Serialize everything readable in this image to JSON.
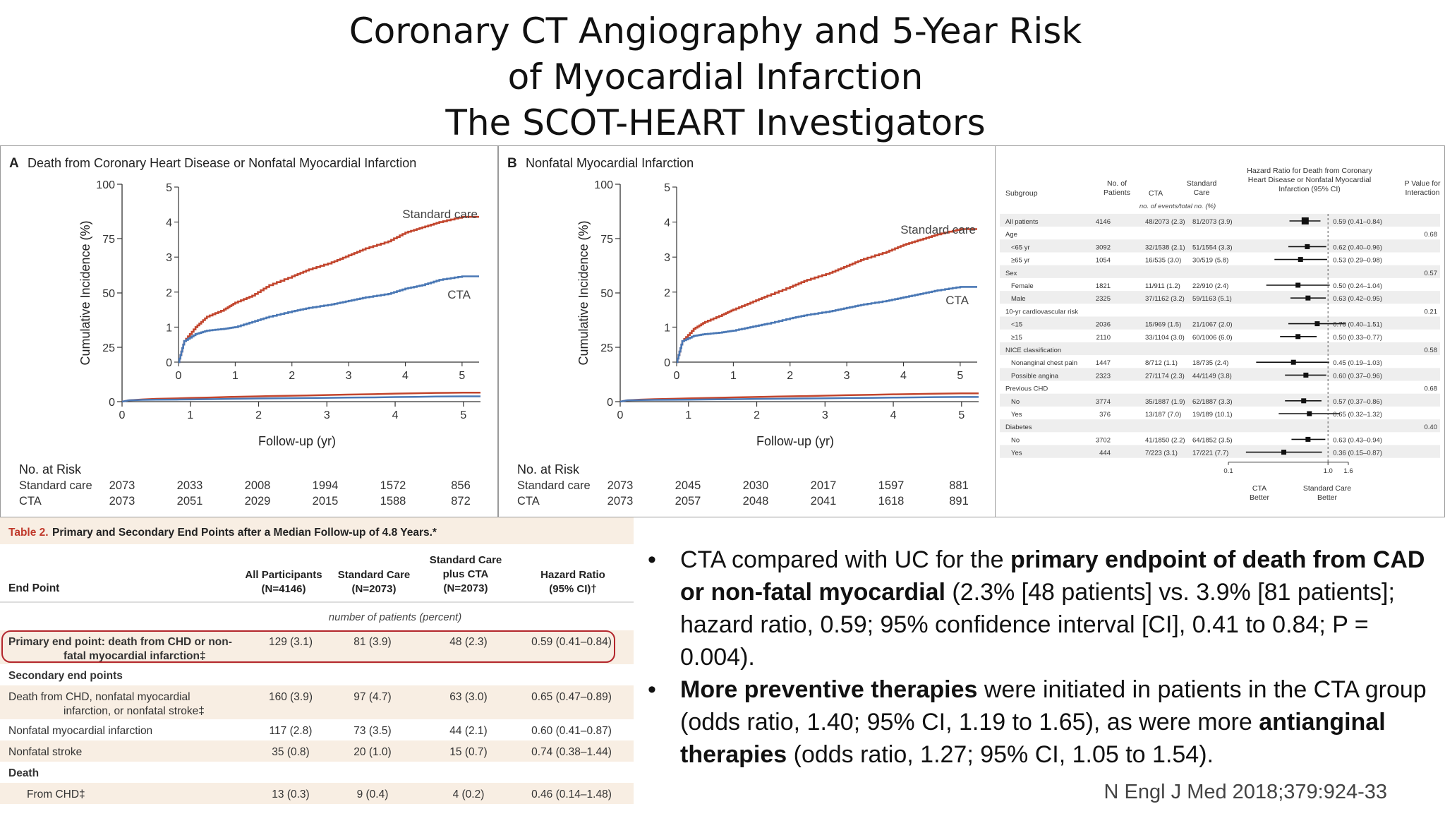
{
  "title": {
    "line1": "Coronary CT Angiography and 5-Year Risk",
    "line2": "of Myocardial Infarction",
    "line3": "The SCOT-HEART Investigators"
  },
  "chart_data": [
    {
      "type": "line",
      "panel": "A",
      "title": "Death from Coronary Heart Disease or Nonfatal Myocardial Infarction",
      "xlabel": "Follow-up (yr)",
      "ylabel": "Cumulative Incidence (%)",
      "xlim": [
        0,
        5.25
      ],
      "ylim": [
        0,
        100
      ],
      "x_ticks": [
        "0",
        "1",
        "2",
        "3",
        "4",
        "5"
      ],
      "y_ticks": [
        "0",
        "25",
        "50",
        "75",
        "100"
      ],
      "inset": {
        "xlim": [
          0,
          5.3
        ],
        "ylim": [
          0,
          5
        ],
        "x_ticks": [
          "0",
          "1",
          "2",
          "3",
          "4",
          "5"
        ],
        "y_ticks": [
          "0",
          "1",
          "2",
          "3",
          "4",
          "5"
        ]
      },
      "series": [
        {
          "name": "Standard care",
          "color": "#c2452d",
          "x": [
            0,
            0.1,
            0.3,
            0.5,
            0.8,
            1.0,
            1.3,
            1.6,
            2.0,
            2.3,
            2.7,
            3.0,
            3.3,
            3.7,
            4.0,
            4.3,
            4.6,
            5.0,
            5.3
          ],
          "y": [
            0,
            0.6,
            1.0,
            1.3,
            1.5,
            1.7,
            1.9,
            2.2,
            2.45,
            2.65,
            2.85,
            3.05,
            3.25,
            3.45,
            3.7,
            3.85,
            4.0,
            4.15,
            4.15
          ]
        },
        {
          "name": "CTA",
          "color": "#4a78b5",
          "x": [
            0,
            0.1,
            0.3,
            0.5,
            0.8,
            1.0,
            1.3,
            1.6,
            2.0,
            2.3,
            2.7,
            3.0,
            3.3,
            3.7,
            4.0,
            4.3,
            4.6,
            5.0,
            5.3
          ],
          "y": [
            0,
            0.6,
            0.8,
            0.9,
            0.95,
            1.0,
            1.15,
            1.3,
            1.45,
            1.55,
            1.65,
            1.75,
            1.85,
            1.95,
            2.1,
            2.2,
            2.35,
            2.45,
            2.45
          ]
        }
      ],
      "labels": {
        "standard": "Standard care",
        "cta": "CTA"
      },
      "risk": {
        "title": "No. at Risk",
        "rows": [
          {
            "label": "Standard care",
            "values": [
              "2073",
              "2033",
              "2008",
              "1994",
              "1572",
              "856"
            ]
          },
          {
            "label": "CTA",
            "values": [
              "2073",
              "2051",
              "2029",
              "2015",
              "1588",
              "872"
            ]
          }
        ]
      }
    },
    {
      "type": "line",
      "panel": "B",
      "title": "Nonfatal Myocardial Infarction",
      "xlabel": "Follow-up (yr)",
      "ylabel": "Cumulative Incidence (%)",
      "xlim": [
        0,
        5.25
      ],
      "ylim": [
        0,
        100
      ],
      "x_ticks": [
        "0",
        "1",
        "2",
        "3",
        "4",
        "5"
      ],
      "y_ticks": [
        "0",
        "25",
        "50",
        "75",
        "100"
      ],
      "inset": {
        "xlim": [
          0,
          5.3
        ],
        "ylim": [
          0,
          5
        ],
        "x_ticks": [
          "0",
          "1",
          "2",
          "3",
          "4",
          "5"
        ],
        "y_ticks": [
          "0",
          "1",
          "2",
          "3",
          "4",
          "5"
        ]
      },
      "series": [
        {
          "name": "Standard care",
          "color": "#c2452d",
          "x": [
            0,
            0.1,
            0.3,
            0.5,
            0.8,
            1.0,
            1.3,
            1.6,
            2.0,
            2.3,
            2.7,
            3.0,
            3.3,
            3.7,
            4.0,
            4.3,
            4.6,
            5.0,
            5.3
          ],
          "y": [
            0,
            0.6,
            0.95,
            1.15,
            1.35,
            1.5,
            1.7,
            1.9,
            2.15,
            2.35,
            2.55,
            2.75,
            2.95,
            3.15,
            3.35,
            3.5,
            3.65,
            3.8,
            3.8
          ]
        },
        {
          "name": "CTA",
          "color": "#4a78b5",
          "x": [
            0,
            0.1,
            0.3,
            0.5,
            0.8,
            1.0,
            1.3,
            1.6,
            2.0,
            2.3,
            2.7,
            3.0,
            3.3,
            3.7,
            4.0,
            4.3,
            4.6,
            5.0,
            5.3
          ],
          "y": [
            0,
            0.6,
            0.75,
            0.8,
            0.85,
            0.9,
            1.0,
            1.1,
            1.25,
            1.35,
            1.45,
            1.55,
            1.65,
            1.75,
            1.85,
            1.95,
            2.05,
            2.15,
            2.15
          ]
        }
      ],
      "labels": {
        "standard": "Standard care",
        "cta": "CTA"
      },
      "risk": {
        "title": "No. at Risk",
        "rows": [
          {
            "label": "Standard care",
            "values": [
              "2073",
              "2045",
              "2030",
              "2017",
              "1597",
              "881"
            ]
          },
          {
            "label": "CTA",
            "values": [
              "2073",
              "2057",
              "2048",
              "2041",
              "1618",
              "891"
            ]
          }
        ]
      }
    },
    {
      "type": "forest",
      "header": {
        "subgroup": "Subgroup",
        "patients": "No. of Patients",
        "cta": "CTA",
        "standard": "Standard Care",
        "events": "no. of events/total no. (%)",
        "hr": "Hazard Ratio for Death from Coronary Heart Disease or Nonfatal Myocardial Infarction (95% CI)",
        "p": "P Value for Interaction"
      },
      "x_ticks": [
        "0.1",
        "1.0",
        "1.6"
      ],
      "xlabel_left": "CTA Better",
      "xlabel_right": "Standard Care Better",
      "rows": [
        {
          "label": "All patients",
          "indent": 0,
          "n": "4146",
          "cta": "48/2073 (2.3)",
          "sc": "81/2073 (3.9)",
          "hr": 0.59,
          "lo": 0.41,
          "hi": 0.84,
          "ci": "0.59 (0.41–0.84)",
          "p": ""
        },
        {
          "label": "Age",
          "indent": 0,
          "group": true,
          "p": "0.68"
        },
        {
          "label": "<65 yr",
          "indent": 1,
          "n": "3092",
          "cta": "32/1538 (2.1)",
          "sc": "51/1554 (3.3)",
          "hr": 0.62,
          "lo": 0.4,
          "hi": 0.96,
          "ci": "0.62 (0.40–0.96)",
          "p": ""
        },
        {
          "label": "≥65 yr",
          "indent": 1,
          "n": "1054",
          "cta": "16/535 (3.0)",
          "sc": "30/519 (5.8)",
          "hr": 0.53,
          "lo": 0.29,
          "hi": 0.98,
          "ci": "0.53 (0.29–0.98)",
          "p": ""
        },
        {
          "label": "Sex",
          "indent": 0,
          "group": true,
          "p": "0.57"
        },
        {
          "label": "Female",
          "indent": 1,
          "n": "1821",
          "cta": "11/911 (1.2)",
          "sc": "22/910 (2.4)",
          "hr": 0.5,
          "lo": 0.24,
          "hi": 1.04,
          "ci": "0.50 (0.24–1.04)",
          "p": ""
        },
        {
          "label": "Male",
          "indent": 1,
          "n": "2325",
          "cta": "37/1162 (3.2)",
          "sc": "59/1163 (5.1)",
          "hr": 0.63,
          "lo": 0.42,
          "hi": 0.95,
          "ci": "0.63 (0.42–0.95)",
          "p": ""
        },
        {
          "label": "10-yr cardiovascular risk",
          "indent": 0,
          "group": true,
          "p": "0.21"
        },
        {
          "label": "<15",
          "indent": 1,
          "n": "2036",
          "cta": "15/969 (1.5)",
          "sc": "21/1067 (2.0)",
          "hr": 0.78,
          "lo": 0.4,
          "hi": 1.51,
          "ci": "0.78 (0.40–1.51)",
          "p": ""
        },
        {
          "label": "≥15",
          "indent": 1,
          "n": "2110",
          "cta": "33/1104 (3.0)",
          "sc": "60/1006 (6.0)",
          "hr": 0.5,
          "lo": 0.33,
          "hi": 0.77,
          "ci": "0.50 (0.33–0.77)",
          "p": ""
        },
        {
          "label": "NICE classification",
          "indent": 0,
          "group": true,
          "p": "0.58"
        },
        {
          "label": "Nonanginal chest pain",
          "indent": 1,
          "n": "1447",
          "cta": "8/712 (1.1)",
          "sc": "18/735 (2.4)",
          "hr": 0.45,
          "lo": 0.19,
          "hi": 1.03,
          "ci": "0.45 (0.19–1.03)",
          "p": ""
        },
        {
          "label": "Possible angina",
          "indent": 1,
          "n": "2323",
          "cta": "27/1174 (2.3)",
          "sc": "44/1149 (3.8)",
          "hr": 0.6,
          "lo": 0.37,
          "hi": 0.96,
          "ci": "0.60 (0.37–0.96)",
          "p": ""
        },
        {
          "label": "Previous CHD",
          "indent": 0,
          "group": true,
          "p": "0.68"
        },
        {
          "label": "No",
          "indent": 1,
          "n": "3774",
          "cta": "35/1887 (1.9)",
          "sc": "62/1887 (3.3)",
          "hr": 0.57,
          "lo": 0.37,
          "hi": 0.86,
          "ci": "0.57 (0.37–0.86)",
          "p": ""
        },
        {
          "label": "Yes",
          "indent": 1,
          "n": "376",
          "cta": "13/187 (7.0)",
          "sc": "19/189 (10.1)",
          "hr": 0.65,
          "lo": 0.32,
          "hi": 1.32,
          "ci": "0.65 (0.32–1.32)",
          "p": ""
        },
        {
          "label": "Diabetes",
          "indent": 0,
          "group": true,
          "p": "0.40"
        },
        {
          "label": "No",
          "indent": 1,
          "n": "3702",
          "cta": "41/1850 (2.2)",
          "sc": "64/1852 (3.5)",
          "hr": 0.63,
          "lo": 0.43,
          "hi": 0.94,
          "ci": "0.63 (0.43–0.94)",
          "p": ""
        },
        {
          "label": "Yes",
          "indent": 1,
          "n": "444",
          "cta": "7/223 (3.1)",
          "sc": "17/221 (7.7)",
          "hr": 0.36,
          "lo": 0.15,
          "hi": 0.87,
          "ci": "0.36 (0.15–0.87)",
          "p": ""
        }
      ]
    },
    {
      "type": "table",
      "caption_prefix": "Table 2.",
      "caption": "Primary and Secondary End Points after a Median Follow-up of 4.8 Years.*",
      "columns": [
        "End Point",
        "All Participants (N=4146)",
        "Standard Care (N=2073)",
        "Standard Care plus CTA (N=2073)",
        "Hazard Ratio (95% CI)†"
      ],
      "subheader": "number of patients (percent)",
      "rows": [
        {
          "label": "Primary end point: death from CHD or non-",
          "label2": "fatal myocardial infarction‡",
          "cells": [
            "129 (3.1)",
            "81 (3.9)",
            "48 (2.3)",
            "0.59 (0.41–0.84)"
          ],
          "highlight": true,
          "shade": true
        },
        {
          "label": "Secondary end points",
          "section": true
        },
        {
          "label": "Death from CHD, nonfatal myocardial",
          "label2": "infarction, or nonfatal stroke‡",
          "cells": [
            "160 (3.9)",
            "97 (4.7)",
            "63 (3.0)",
            "0.65 (0.47–0.89)"
          ],
          "shade": true
        },
        {
          "label": "Nonfatal myocardial infarction",
          "cells": [
            "117 (2.8)",
            "73 (3.5)",
            "44 (2.1)",
            "0.60 (0.41–0.87)"
          ]
        },
        {
          "label": "Nonfatal stroke",
          "cells": [
            "35 (0.8)",
            "20 (1.0)",
            "15 (0.7)",
            "0.74 (0.38–1.44)"
          ],
          "shade": true
        },
        {
          "label": "Death",
          "section": true
        },
        {
          "label": "From CHD‡",
          "cells": [
            "13 (0.3)",
            "9 (0.4)",
            "4 (0.2)",
            "0.46 (0.14–1.48)"
          ],
          "shade": true,
          "indent": true
        }
      ]
    }
  ],
  "bullets": [
    {
      "dot": "•",
      "parts": [
        {
          "t": "CTA compared with UC for the ",
          "b": false
        },
        {
          "t": "primary endpoint of death from CAD or non-fatal myocardial",
          "b": true
        },
        {
          "t": " (2.3% [48 patients] vs. 3.9% [81 patients]; hazard ratio, 0.59; 95% confidence interval [CI], 0.41 to 0.84; P = 0.004).",
          "b": false
        }
      ]
    },
    {
      "dot": "•",
      "parts": [
        {
          "t": "More preventive therapies",
          "b": true
        },
        {
          "t": " were initiated in patients in the CTA group (odds ratio, 1.40; 95% CI, 1.19 to 1.65), as were more ",
          "b": false
        },
        {
          "t": "antianginal therapies",
          "b": true
        },
        {
          "t": " (odds ratio, 1.27; 95% CI, 1.05 to 1.54).",
          "b": false
        }
      ]
    }
  ],
  "citation": "N Engl J Med 2018;379:924-33"
}
